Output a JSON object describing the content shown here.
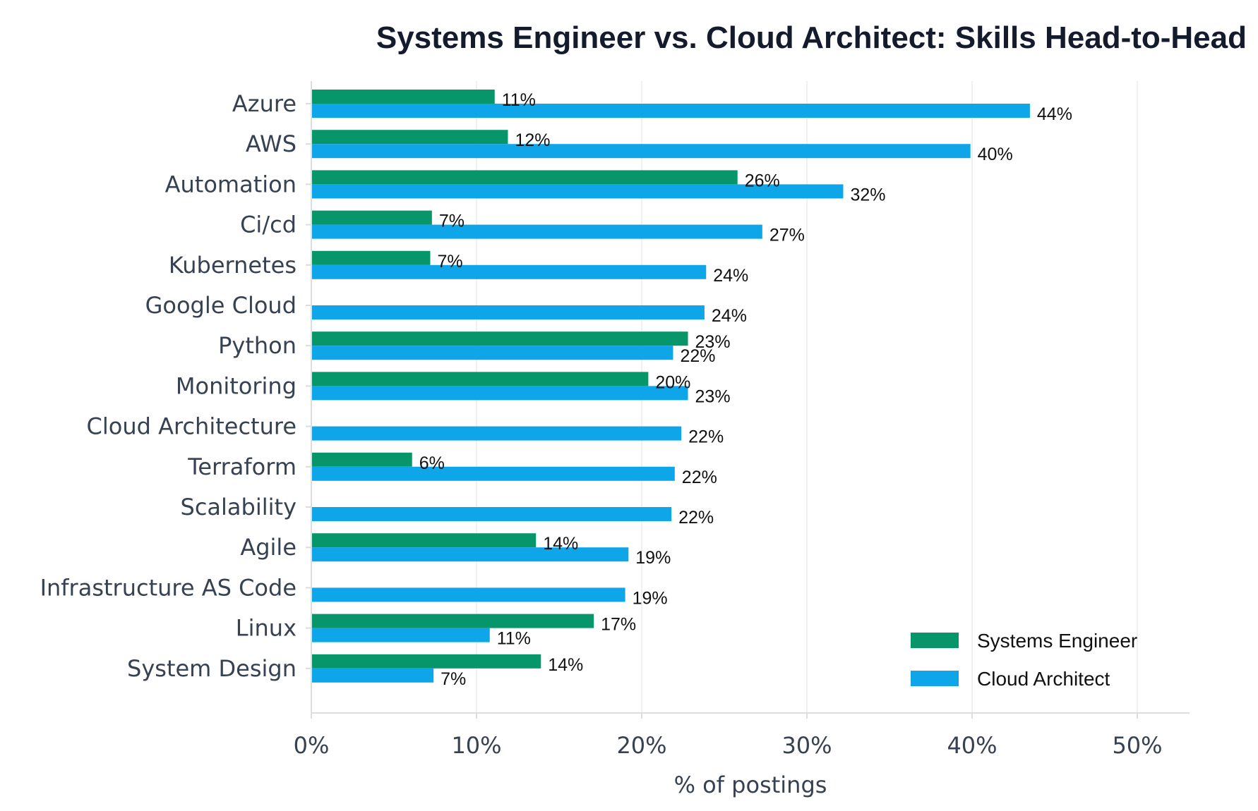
{
  "chart_data": {
    "type": "bar",
    "orientation": "horizontal",
    "title": "Systems Engineer vs. Cloud Architect: Skills Head-to-Head",
    "xlabel": "% of postings",
    "ylabel": "",
    "xlim": [
      0,
      53
    ],
    "x_ticks": [
      0,
      10,
      20,
      30,
      40,
      50
    ],
    "x_tick_labels": [
      "0%",
      "10%",
      "20%",
      "30%",
      "40%",
      "50%"
    ],
    "grid": "vertical",
    "legend_position": "bottom-right",
    "categories": [
      "Azure",
      "AWS",
      "Automation",
      "Ci/cd",
      "Kubernetes",
      "Google Cloud",
      "Python",
      "Monitoring",
      "Cloud Architecture",
      "Terraform",
      "Scalability",
      "Agile",
      "Infrastructure AS Code",
      "Linux",
      "System Design"
    ],
    "series": [
      {
        "name": "Systems Engineer",
        "color": "#079669",
        "values": [
          11.1,
          11.9,
          25.8,
          7.3,
          7.2,
          null,
          22.8,
          20.4,
          null,
          6.1,
          null,
          13.6,
          null,
          17.1,
          13.9
        ],
        "labels": [
          "11%",
          "12%",
          "26%",
          "7%",
          "7%",
          "",
          "23%",
          "20%",
          "",
          "6%",
          "",
          "14%",
          "",
          "17%",
          "14%"
        ]
      },
      {
        "name": "Cloud Architect",
        "color": "#0ea5e9",
        "values": [
          43.5,
          39.9,
          32.2,
          27.3,
          23.9,
          23.8,
          21.9,
          22.8,
          22.4,
          22.0,
          21.8,
          19.2,
          19.0,
          10.8,
          7.4
        ],
        "labels": [
          "44%",
          "40%",
          "32%",
          "27%",
          "24%",
          "24%",
          "22%",
          "23%",
          "22%",
          "22%",
          "22%",
          "19%",
          "19%",
          "11%",
          "7%"
        ]
      }
    ]
  }
}
